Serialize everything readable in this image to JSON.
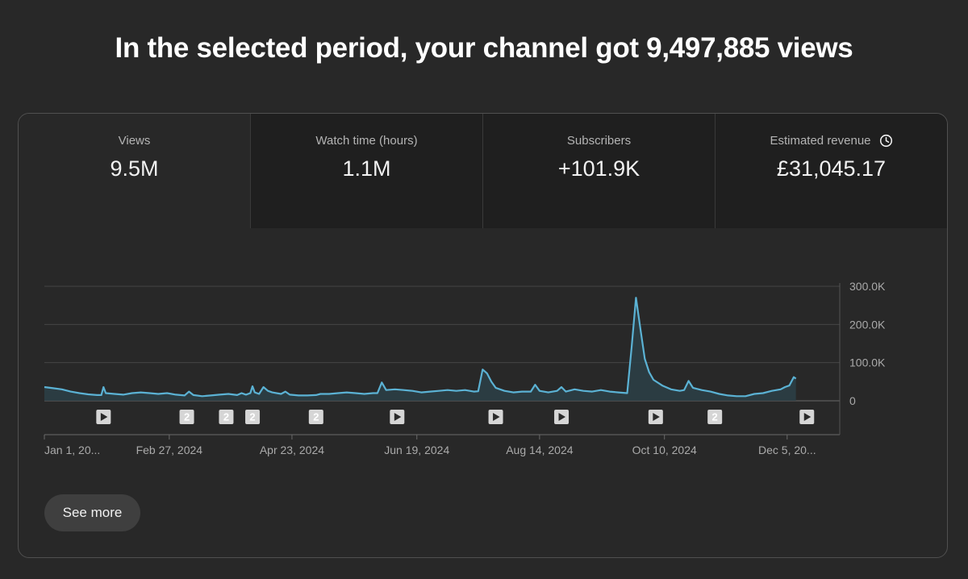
{
  "headline": "In the selected period, your channel got 9,497,885 views",
  "tabs": [
    {
      "label": "Views",
      "value": "9.5M"
    },
    {
      "label": "Watch time (hours)",
      "value": "1.1M"
    },
    {
      "label": "Subscribers",
      "value": "+101.9K"
    },
    {
      "label": "Estimated revenue",
      "value": "£31,045.17",
      "icon": "clock-icon"
    }
  ],
  "see_more_label": "See more",
  "colors": {
    "line": "#5bb2d4",
    "fill": "#2c3f47",
    "grid": "#454545",
    "axis_text": "#aaaaaa",
    "marker_bg": "#d6d6d6",
    "marker_fg": "#2a2a2a"
  },
  "chart_data": {
    "type": "line",
    "title": "Views",
    "x_start": "Jan 1, 2024",
    "x_end": "Dec 29, 2024",
    "x_range": [
      0,
      363
    ],
    "xtick_labels": [
      "Jan 1, 20...",
      "Feb 27, 2024",
      "Apr 23, 2024",
      "Jun 19, 2024",
      "Aug 14, 2024",
      "Oct 10, 2024",
      "Dec 5, 20..."
    ],
    "xtick_days": [
      0,
      57,
      113,
      170,
      226,
      283,
      339
    ],
    "ylim": [
      0,
      300000
    ],
    "yticks": [
      0,
      100000,
      200000,
      300000
    ],
    "ytick_labels": [
      "0",
      "100.0K",
      "200.0K",
      "300.0K"
    ],
    "grid": true,
    "series": [
      {
        "name": "Views",
        "points": [
          [
            0,
            36000
          ],
          [
            4,
            33000
          ],
          [
            8,
            30000
          ],
          [
            12,
            24000
          ],
          [
            16,
            20000
          ],
          [
            20,
            17000
          ],
          [
            24,
            15000
          ],
          [
            26,
            15000
          ],
          [
            27,
            36000
          ],
          [
            28,
            20000
          ],
          [
            32,
            18000
          ],
          [
            36,
            16000
          ],
          [
            40,
            20000
          ],
          [
            44,
            22000
          ],
          [
            48,
            20000
          ],
          [
            52,
            18000
          ],
          [
            56,
            20000
          ],
          [
            60,
            16000
          ],
          [
            64,
            14000
          ],
          [
            66,
            24000
          ],
          [
            68,
            15000
          ],
          [
            72,
            12000
          ],
          [
            76,
            14000
          ],
          [
            80,
            16000
          ],
          [
            84,
            18000
          ],
          [
            88,
            15000
          ],
          [
            90,
            20000
          ],
          [
            92,
            16000
          ],
          [
            94,
            20000
          ],
          [
            95,
            38000
          ],
          [
            96,
            22000
          ],
          [
            98,
            18000
          ],
          [
            100,
            36000
          ],
          [
            102,
            26000
          ],
          [
            104,
            22000
          ],
          [
            108,
            18000
          ],
          [
            110,
            24000
          ],
          [
            112,
            16000
          ],
          [
            116,
            14000
          ],
          [
            120,
            14000
          ],
          [
            124,
            15000
          ],
          [
            126,
            18000
          ],
          [
            130,
            18000
          ],
          [
            134,
            20000
          ],
          [
            138,
            22000
          ],
          [
            142,
            20000
          ],
          [
            146,
            18000
          ],
          [
            150,
            20000
          ],
          [
            152,
            20000
          ],
          [
            154,
            48000
          ],
          [
            156,
            28000
          ],
          [
            160,
            30000
          ],
          [
            164,
            28000
          ],
          [
            168,
            26000
          ],
          [
            172,
            22000
          ],
          [
            176,
            24000
          ],
          [
            180,
            26000
          ],
          [
            184,
            28000
          ],
          [
            188,
            26000
          ],
          [
            192,
            28000
          ],
          [
            196,
            24000
          ],
          [
            198,
            25000
          ],
          [
            200,
            82000
          ],
          [
            202,
            72000
          ],
          [
            204,
            50000
          ],
          [
            206,
            34000
          ],
          [
            210,
            26000
          ],
          [
            214,
            22000
          ],
          [
            218,
            24000
          ],
          [
            222,
            24000
          ],
          [
            224,
            42000
          ],
          [
            226,
            26000
          ],
          [
            230,
            22000
          ],
          [
            234,
            26000
          ],
          [
            236,
            36000
          ],
          [
            238,
            24000
          ],
          [
            242,
            30000
          ],
          [
            246,
            26000
          ],
          [
            250,
            24000
          ],
          [
            254,
            28000
          ],
          [
            258,
            24000
          ],
          [
            262,
            22000
          ],
          [
            266,
            20000
          ],
          [
            268,
            140000
          ],
          [
            270,
            270000
          ],
          [
            272,
            190000
          ],
          [
            274,
            110000
          ],
          [
            276,
            75000
          ],
          [
            278,
            55000
          ],
          [
            282,
            40000
          ],
          [
            286,
            30000
          ],
          [
            290,
            26000
          ],
          [
            292,
            28000
          ],
          [
            294,
            52000
          ],
          [
            296,
            34000
          ],
          [
            300,
            28000
          ],
          [
            304,
            24000
          ],
          [
            308,
            18000
          ],
          [
            312,
            14000
          ],
          [
            316,
            12000
          ],
          [
            320,
            12000
          ],
          [
            324,
            18000
          ],
          [
            328,
            20000
          ],
          [
            332,
            26000
          ],
          [
            336,
            30000
          ],
          [
            338,
            36000
          ],
          [
            340,
            40000
          ],
          [
            342,
            62000
          ],
          [
            343,
            58000
          ]
        ]
      }
    ],
    "annotations": [
      {
        "day": 27,
        "kind": "video"
      },
      {
        "day": 65,
        "kind": "count",
        "label": "2"
      },
      {
        "day": 83,
        "kind": "count",
        "label": "2"
      },
      {
        "day": 95,
        "kind": "count",
        "label": "2"
      },
      {
        "day": 124,
        "kind": "count",
        "label": "2"
      },
      {
        "day": 161,
        "kind": "video"
      },
      {
        "day": 206,
        "kind": "video"
      },
      {
        "day": 236,
        "kind": "video"
      },
      {
        "day": 279,
        "kind": "video"
      },
      {
        "day": 306,
        "kind": "count",
        "label": "2"
      },
      {
        "day": 348,
        "kind": "video"
      }
    ]
  }
}
